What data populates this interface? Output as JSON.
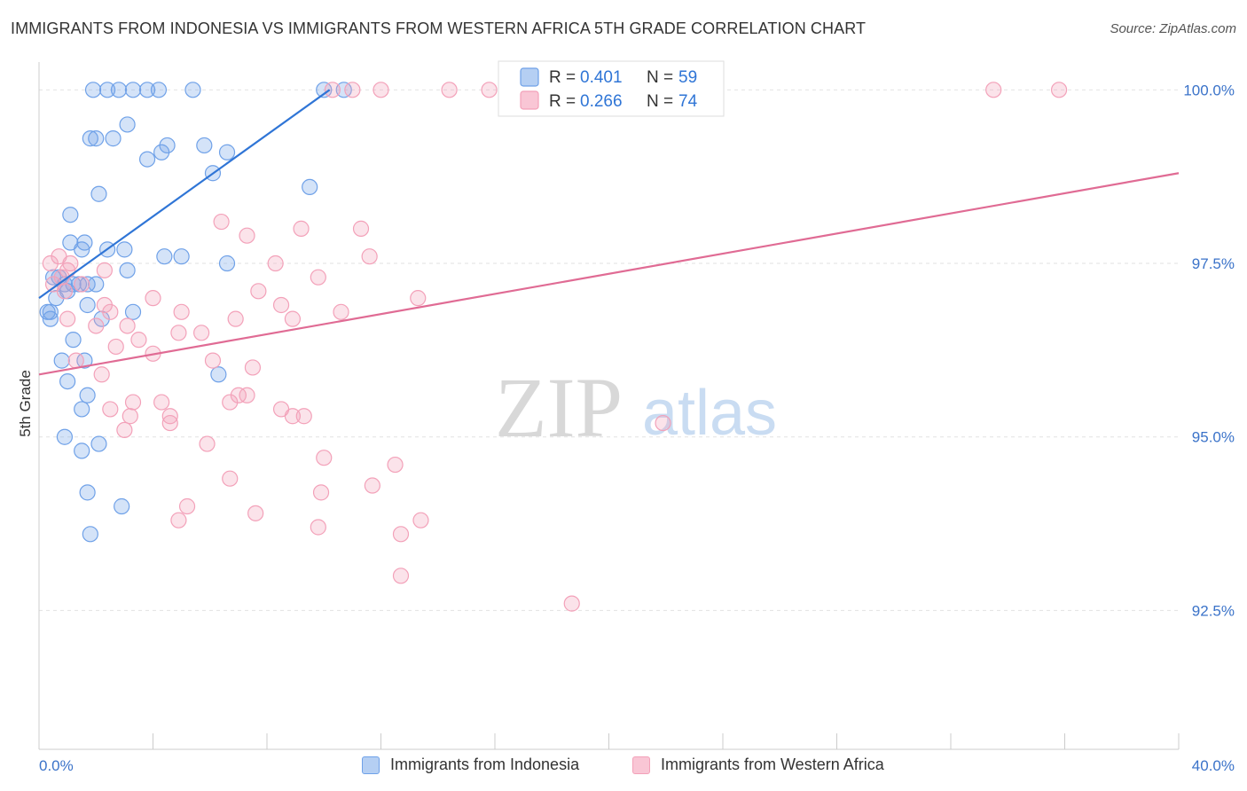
{
  "title": "IMMIGRANTS FROM INDONESIA VS IMMIGRANTS FROM WESTERN AFRICA 5TH GRADE CORRELATION CHART",
  "source": "Source: ZipAtlas.com",
  "watermark": {
    "zip": "ZIP",
    "atlas": "atlas"
  },
  "chart_data": {
    "type": "scatter",
    "title": "IMMIGRANTS FROM INDONESIA VS IMMIGRANTS FROM WESTERN AFRICA 5TH GRADE CORRELATION CHART",
    "xlabel": "",
    "ylabel": "5th Grade",
    "xlim": [
      0,
      40
    ],
    "ylim": [
      90.5,
      100.4
    ],
    "x_tick_labels": [
      "0.0%",
      "40.0%"
    ],
    "y_ticks": [
      {
        "value": 100.0,
        "label": "100.0%"
      },
      {
        "value": 97.5,
        "label": "97.5%"
      },
      {
        "value": 95.0,
        "label": "95.0%"
      },
      {
        "value": 92.5,
        "label": "92.5%"
      }
    ],
    "grid": true,
    "legend_stats": [
      {
        "r_label": "R =",
        "r_value": "0.401",
        "n_label": "N =",
        "n_value": "59"
      },
      {
        "r_label": "R =",
        "r_value": "0.266",
        "n_label": "N =",
        "n_value": "74"
      }
    ],
    "series": [
      {
        "name": "Immigrants from Indonesia",
        "color": "#6fa1e8",
        "line_color": "#2f75d6",
        "trend": {
          "x0": 0.0,
          "y0": 97.0,
          "x1": 10.2,
          "y1": 100.0
        },
        "points": [
          [
            1.9,
            100.0
          ],
          [
            2.4,
            100.0
          ],
          [
            2.8,
            100.0
          ],
          [
            3.3,
            100.0
          ],
          [
            3.8,
            100.0
          ],
          [
            4.2,
            100.0
          ],
          [
            5.4,
            100.0
          ],
          [
            10.0,
            100.0
          ],
          [
            10.7,
            100.0
          ],
          [
            3.1,
            99.5
          ],
          [
            1.8,
            99.3
          ],
          [
            2.0,
            99.3
          ],
          [
            2.6,
            99.3
          ],
          [
            4.5,
            99.2
          ],
          [
            6.6,
            99.1
          ],
          [
            4.3,
            99.1
          ],
          [
            5.8,
            99.2
          ],
          [
            3.8,
            99.0
          ],
          [
            6.1,
            98.8
          ],
          [
            9.5,
            98.6
          ],
          [
            2.1,
            98.5
          ],
          [
            1.1,
            98.2
          ],
          [
            2.4,
            97.7
          ],
          [
            1.6,
            97.8
          ],
          [
            3.0,
            97.7
          ],
          [
            1.1,
            97.8
          ],
          [
            1.5,
            97.7
          ],
          [
            4.4,
            97.6
          ],
          [
            5.0,
            97.6
          ],
          [
            6.6,
            97.5
          ],
          [
            3.1,
            97.4
          ],
          [
            0.7,
            97.3
          ],
          [
            0.9,
            97.2
          ],
          [
            1.4,
            97.2
          ],
          [
            1.2,
            97.2
          ],
          [
            1.7,
            97.2
          ],
          [
            2.0,
            97.2
          ],
          [
            0.5,
            97.3
          ],
          [
            1.0,
            97.1
          ],
          [
            0.3,
            96.8
          ],
          [
            0.4,
            96.8
          ],
          [
            1.7,
            96.9
          ],
          [
            0.4,
            96.7
          ],
          [
            2.2,
            96.7
          ],
          [
            3.3,
            96.8
          ],
          [
            1.2,
            96.4
          ],
          [
            0.8,
            96.1
          ],
          [
            1.6,
            96.1
          ],
          [
            1.0,
            95.8
          ],
          [
            6.3,
            95.9
          ],
          [
            1.7,
            95.6
          ],
          [
            1.5,
            95.4
          ],
          [
            0.9,
            95.0
          ],
          [
            2.1,
            94.9
          ],
          [
            1.5,
            94.8
          ],
          [
            1.7,
            94.2
          ],
          [
            2.9,
            94.0
          ],
          [
            1.8,
            93.6
          ],
          [
            0.6,
            97.0
          ]
        ]
      },
      {
        "name": "Immigrants from Western Africa",
        "color": "#f3a1b9",
        "line_color": "#e06b94",
        "trend": {
          "x0": 0.0,
          "y0": 95.9,
          "x1": 40.0,
          "y1": 98.8
        },
        "points": [
          [
            10.3,
            100.0
          ],
          [
            11.0,
            100.0
          ],
          [
            12.0,
            100.0
          ],
          [
            14.4,
            100.0
          ],
          [
            15.8,
            100.0
          ],
          [
            33.5,
            100.0
          ],
          [
            35.8,
            100.0
          ],
          [
            17.0,
            100.0
          ],
          [
            6.4,
            98.1
          ],
          [
            9.2,
            98.0
          ],
          [
            7.3,
            97.9
          ],
          [
            11.3,
            98.0
          ],
          [
            8.3,
            97.5
          ],
          [
            11.6,
            97.6
          ],
          [
            0.7,
            97.6
          ],
          [
            1.0,
            97.4
          ],
          [
            0.4,
            97.5
          ],
          [
            2.3,
            97.4
          ],
          [
            1.5,
            97.2
          ],
          [
            0.5,
            97.2
          ],
          [
            9.8,
            97.3
          ],
          [
            7.7,
            97.1
          ],
          [
            13.3,
            97.0
          ],
          [
            4.0,
            97.0
          ],
          [
            2.3,
            96.9
          ],
          [
            2.5,
            96.8
          ],
          [
            5.0,
            96.8
          ],
          [
            8.5,
            96.9
          ],
          [
            10.6,
            96.8
          ],
          [
            6.9,
            96.7
          ],
          [
            1.0,
            96.7
          ],
          [
            3.1,
            96.6
          ],
          [
            8.9,
            96.7
          ],
          [
            5.7,
            96.5
          ],
          [
            2.7,
            96.3
          ],
          [
            3.5,
            96.4
          ],
          [
            1.3,
            96.1
          ],
          [
            4.0,
            96.2
          ],
          [
            6.1,
            96.1
          ],
          [
            2.2,
            95.9
          ],
          [
            7.5,
            96.0
          ],
          [
            2.5,
            95.4
          ],
          [
            3.3,
            95.5
          ],
          [
            4.3,
            95.5
          ],
          [
            6.7,
            95.5
          ],
          [
            3.2,
            95.3
          ],
          [
            4.6,
            95.3
          ],
          [
            7.0,
            95.6
          ],
          [
            7.3,
            95.6
          ],
          [
            8.5,
            95.4
          ],
          [
            8.9,
            95.3
          ],
          [
            9.3,
            95.3
          ],
          [
            3.0,
            95.1
          ],
          [
            4.6,
            95.2
          ],
          [
            5.9,
            94.9
          ],
          [
            10.0,
            94.7
          ],
          [
            12.5,
            94.6
          ],
          [
            6.7,
            94.4
          ],
          [
            21.9,
            95.2
          ],
          [
            9.9,
            94.2
          ],
          [
            11.7,
            94.3
          ],
          [
            5.2,
            94.0
          ],
          [
            4.9,
            93.8
          ],
          [
            7.6,
            93.9
          ],
          [
            9.8,
            93.7
          ],
          [
            12.7,
            93.6
          ],
          [
            13.4,
            93.8
          ],
          [
            12.7,
            93.0
          ],
          [
            18.7,
            92.6
          ],
          [
            0.9,
            97.1
          ],
          [
            2.0,
            96.6
          ],
          [
            4.9,
            96.5
          ],
          [
            0.8,
            97.3
          ],
          [
            1.1,
            97.5
          ]
        ]
      }
    ]
  }
}
